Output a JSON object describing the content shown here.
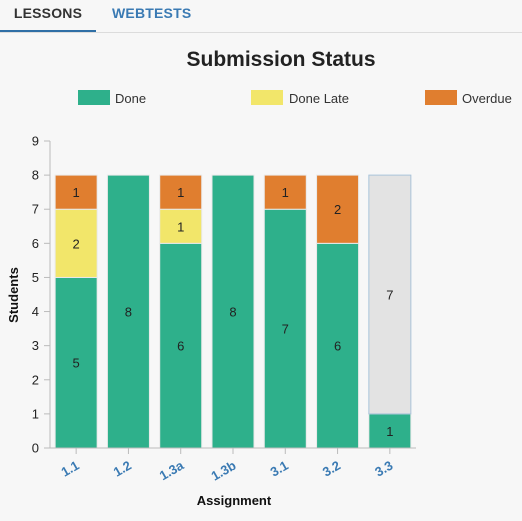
{
  "tabs": [
    {
      "label": "LESSONS",
      "active": true
    },
    {
      "label": "WEBTESTS",
      "active": false
    }
  ],
  "colors": {
    "done": "#2eb08b",
    "done_late": "#f2e66a",
    "overdue": "#e07e2f",
    "unsubmitted": "#e3e3e3",
    "tab_active": "#333333",
    "tab_inactive": "#3a7ab3",
    "tick_x": "#3a7ab3"
  },
  "chart_data": {
    "type": "bar",
    "stacked": true,
    "title": "Submission Status",
    "xlabel": "Assignment",
    "ylabel": "Students",
    "ylim": [
      0,
      9
    ],
    "yticks": [
      0,
      1,
      2,
      3,
      4,
      5,
      6,
      7,
      8,
      9
    ],
    "categories": [
      "1.1",
      "1.2",
      "1.3a",
      "1.3b",
      "3.1",
      "3.2",
      "3.3"
    ],
    "legend_position": "top",
    "series": [
      {
        "name": "Done",
        "color_key": "done",
        "values": [
          5,
          8,
          6,
          8,
          7,
          6,
          1
        ]
      },
      {
        "name": "Done Late",
        "color_key": "done_late",
        "values": [
          2,
          0,
          1,
          0,
          0,
          0,
          0
        ]
      },
      {
        "name": "Overdue",
        "color_key": "overdue",
        "values": [
          1,
          0,
          1,
          0,
          1,
          2,
          0
        ]
      },
      {
        "name": "",
        "color_key": "unsubmitted",
        "values": [
          0,
          0,
          0,
          0,
          0,
          0,
          7
        ]
      }
    ]
  }
}
